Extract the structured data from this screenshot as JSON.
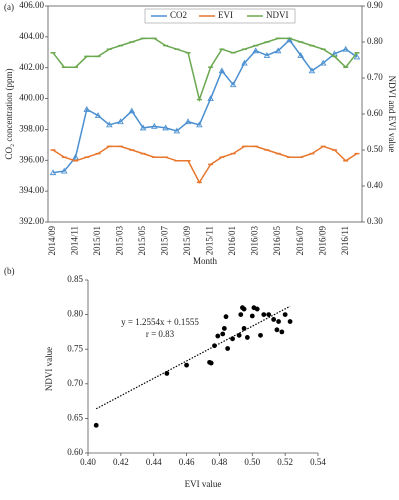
{
  "chart_data": [
    {
      "type": "line",
      "panel": "(a)",
      "x_label": "Month",
      "y_label": "CO₂ concentration (ppm)",
      "y2_label": "NDVI and EVI value",
      "categories": [
        "2014/09",
        null,
        "2014/11",
        null,
        "2015/01",
        null,
        "2015/03",
        null,
        "2015/05",
        null,
        "2015/07",
        null,
        "2015/09",
        null,
        "2015/11",
        null,
        "2016/01",
        null,
        "2016/03",
        null,
        "2016/05",
        null,
        "2016/07",
        null,
        "2016/09",
        null,
        "2016/11",
        null
      ],
      "ylim": [
        392,
        406
      ],
      "yticks": [
        {
          "value": 392,
          "label": "392.00"
        },
        {
          "value": 394,
          "label": "394.00"
        },
        {
          "value": 396,
          "label": "396.00"
        },
        {
          "value": 398,
          "label": "398.00"
        },
        {
          "value": 400,
          "label": "400.00"
        },
        {
          "value": 402,
          "label": "402.00"
        },
        {
          "value": 404,
          "label": "404.00"
        },
        {
          "value": 406,
          "label": "406.00"
        }
      ],
      "y2lim": [
        0.3,
        0.9
      ],
      "y2ticks": [
        {
          "value": 0.3,
          "label": "0.30"
        },
        {
          "value": 0.4,
          "label": "0.40"
        },
        {
          "value": 0.5,
          "label": "0.50"
        },
        {
          "value": 0.6,
          "label": "0.60"
        },
        {
          "value": 0.7,
          "label": "0.70"
        },
        {
          "value": 0.8,
          "label": "0.80"
        },
        {
          "value": 0.9,
          "label": "0.90"
        }
      ],
      "legend": "top",
      "series": [
        {
          "name": "CO2",
          "color": "#4a8fd0",
          "marker": "triangle",
          "values": [
            395.2,
            395.3,
            396.2,
            399.3,
            398.9,
            398.3,
            398.5,
            399.2,
            398.1,
            398.2,
            398.1,
            397.9,
            398.5,
            398.3,
            400.0,
            401.8,
            400.9,
            402.3,
            403.1,
            402.8,
            403.1,
            403.8,
            402.8,
            401.8,
            402.3,
            402.9,
            403.2,
            402.7
          ]
        },
        {
          "name": "EVI",
          "color": "#e8762c",
          "marker": "dash",
          "axis": "y2",
          "values": [
            0.5,
            0.48,
            0.47,
            0.48,
            0.49,
            0.51,
            0.51,
            0.5,
            0.49,
            0.48,
            0.48,
            0.47,
            0.47,
            0.41,
            0.46,
            0.48,
            0.49,
            0.51,
            0.51,
            0.5,
            0.49,
            0.48,
            0.48,
            0.49,
            0.51,
            0.5,
            0.47,
            0.49
          ]
        },
        {
          "name": "NDVI",
          "color": "#6aa84f",
          "marker": "dash",
          "axis": "y2",
          "values": [
            0.77,
            0.73,
            0.73,
            0.76,
            0.76,
            0.78,
            0.79,
            0.8,
            0.81,
            0.81,
            0.79,
            0.78,
            0.77,
            0.64,
            0.73,
            0.78,
            0.77,
            0.78,
            0.79,
            0.8,
            0.81,
            0.81,
            0.8,
            0.79,
            0.78,
            0.76,
            0.73,
            0.77
          ]
        }
      ]
    },
    {
      "type": "scatter",
      "panel": "(b)",
      "x_label": "EVI value",
      "y_label": "NDVI value",
      "color": "#000000",
      "annotations": [
        "y = 1.2554x + 0.1555",
        "r = 0.83"
      ],
      "trendline": {
        "slope": 1.2554,
        "intercept": 0.1555
      },
      "xlim": [
        0.4,
        0.54
      ],
      "xticks": [
        {
          "value": 0.4,
          "label": "0.40"
        },
        {
          "value": 0.42,
          "label": "0.42"
        },
        {
          "value": 0.44,
          "label": "0.44"
        },
        {
          "value": 0.46,
          "label": "0.46"
        },
        {
          "value": 0.48,
          "label": "0.48"
        },
        {
          "value": 0.5,
          "label": "0.50"
        },
        {
          "value": 0.52,
          "label": "0.52"
        },
        {
          "value": 0.54,
          "label": "0.54"
        }
      ],
      "ylim": [
        0.6,
        0.85
      ],
      "yticks": [
        {
          "value": 0.6,
          "label": "0.60"
        },
        {
          "value": 0.65,
          "label": "0.65"
        },
        {
          "value": 0.7,
          "label": "0.70"
        },
        {
          "value": 0.75,
          "label": "0.75"
        },
        {
          "value": 0.8,
          "label": "0.80"
        },
        {
          "value": 0.85,
          "label": "0.85"
        }
      ],
      "x": [
        0.405,
        0.448,
        0.46,
        0.474,
        0.475,
        0.477,
        0.479,
        0.482,
        0.483,
        0.484,
        0.485,
        0.488,
        0.492,
        0.493,
        0.494,
        0.495,
        0.495,
        0.497,
        0.5,
        0.501,
        0.503,
        0.505,
        0.507,
        0.51,
        0.513,
        0.515,
        0.516,
        0.518,
        0.52,
        0.523
      ],
      "values": [
        0.64,
        0.715,
        0.727,
        0.731,
        0.73,
        0.755,
        0.769,
        0.772,
        0.78,
        0.797,
        0.751,
        0.765,
        0.77,
        0.8,
        0.81,
        0.808,
        0.78,
        0.767,
        0.798,
        0.81,
        0.808,
        0.77,
        0.8,
        0.8,
        0.793,
        0.778,
        0.79,
        0.775,
        0.8,
        0.79
      ]
    }
  ]
}
